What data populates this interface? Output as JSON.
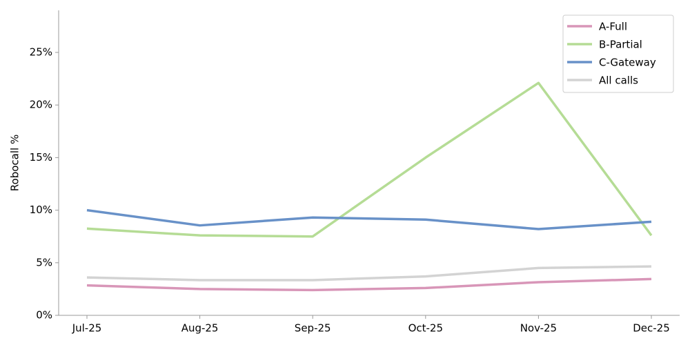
{
  "chart_data": {
    "type": "line",
    "y_label": "Robocall %",
    "categories": [
      "Jul-25",
      "Aug-25",
      "Sep-25",
      "Oct-25",
      "Nov-25",
      "Dec-25"
    ],
    "series": [
      {
        "name": "A-Full",
        "color": "#d896b8",
        "values": [
          2.85,
          2.5,
          2.4,
          2.6,
          3.15,
          3.45
        ]
      },
      {
        "name": "B-Partial",
        "color": "#b5dc95",
        "values": [
          8.25,
          7.6,
          7.5,
          15.0,
          22.1,
          7.6
        ]
      },
      {
        "name": "C-Gateway",
        "color": "#6891c8",
        "values": [
          10.0,
          8.55,
          9.3,
          9.1,
          8.2,
          8.9
        ]
      },
      {
        "name": "All calls",
        "color": "#d3d3d3",
        "values": [
          3.6,
          3.35,
          3.35,
          3.7,
          4.5,
          4.65
        ]
      }
    ],
    "ylim": [
      0,
      29
    ],
    "yticks": [
      {
        "value": 0,
        "label": "0%"
      },
      {
        "value": 5,
        "label": "5%"
      },
      {
        "value": 10,
        "label": "10%"
      },
      {
        "value": 15,
        "label": "15%"
      },
      {
        "value": 20,
        "label": "20%"
      },
      {
        "value": 25,
        "label": "25%"
      }
    ],
    "grid": false,
    "legend": "upper right"
  }
}
